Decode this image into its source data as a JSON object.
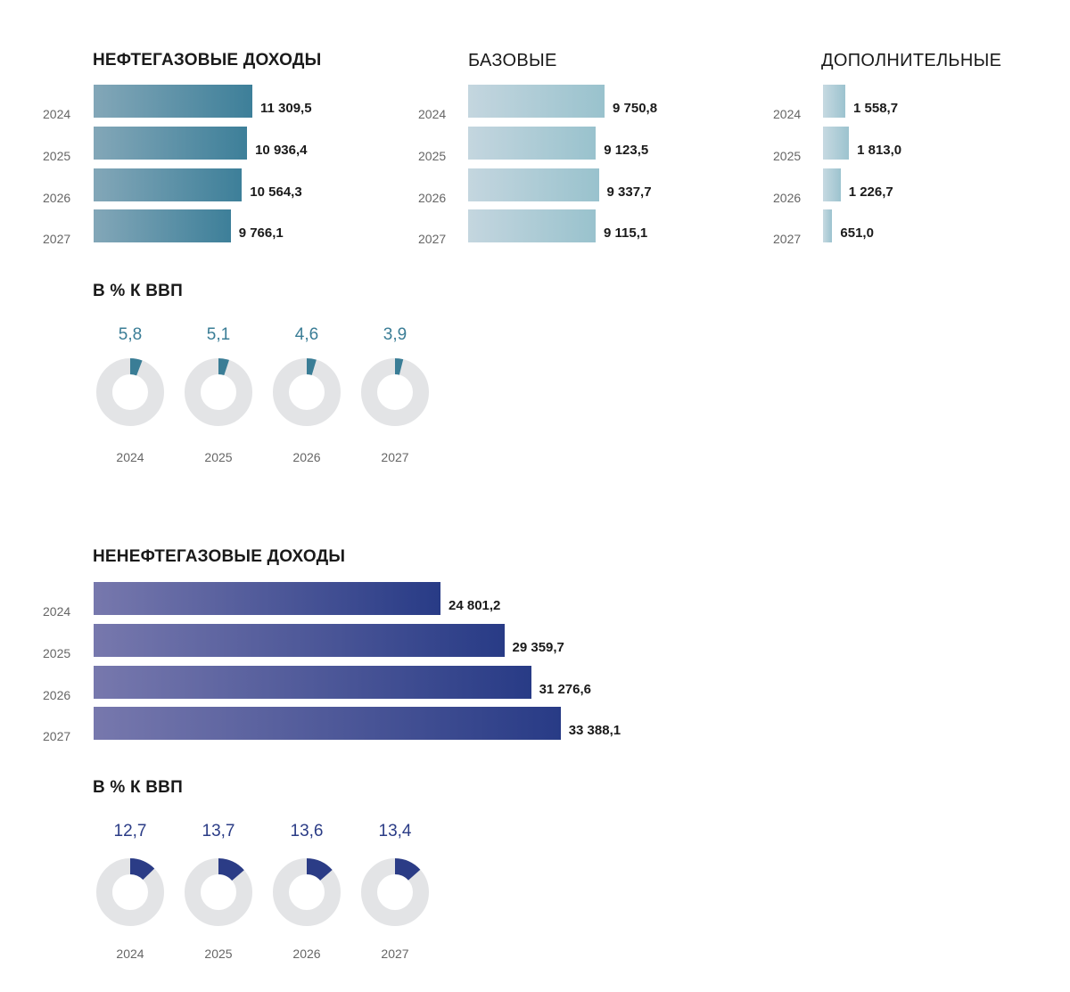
{
  "colors": {
    "oil_accent": "#3a7d96",
    "nonoil_accent": "#2b3c86",
    "ring_bg": "#e3e4e6"
  },
  "chart_data": [
    {
      "type": "bar",
      "orientation": "horizontal",
      "title": "НЕФТЕГАЗОВЫЕ ДОХОДЫ",
      "categories": [
        "2024",
        "2025",
        "2026",
        "2027"
      ],
      "values": [
        11309.5,
        10936.4,
        10564.3,
        9766.1
      ],
      "labels": [
        "11 309,5",
        "10 936,4",
        "10 564,3",
        "9 766,1"
      ]
    },
    {
      "type": "bar",
      "orientation": "horizontal",
      "title": "БАЗОВЫЕ",
      "categories": [
        "2024",
        "2025",
        "2026",
        "2027"
      ],
      "values": [
        9750.8,
        9123.5,
        9337.7,
        9115.1
      ],
      "labels": [
        "9 750,8",
        "9 123,5",
        "9 337,7",
        "9 115,1"
      ]
    },
    {
      "type": "bar",
      "orientation": "horizontal",
      "title": "ДОПОЛНИТЕЛЬНЫЕ",
      "categories": [
        "2024",
        "2025",
        "2026",
        "2027"
      ],
      "values": [
        1558.7,
        1813.0,
        1226.7,
        651.0
      ],
      "labels": [
        "1 558,7",
        "1 813,0",
        "1 226,7",
        "651,0"
      ]
    },
    {
      "type": "pie",
      "title": "В % К ВВП",
      "categories": [
        "2024",
        "2025",
        "2026",
        "2027"
      ],
      "values": [
        5.8,
        5.1,
        4.6,
        3.9
      ],
      "labels": [
        "5,8",
        "5,1",
        "4,6",
        "3,9"
      ]
    },
    {
      "type": "bar",
      "orientation": "horizontal",
      "title": "НЕНЕФТЕГАЗОВЫЕ ДОХОДЫ",
      "categories": [
        "2024",
        "2025",
        "2026",
        "2027"
      ],
      "values": [
        24801.2,
        29359.7,
        31276.6,
        33388.1
      ],
      "labels": [
        "24 801,2",
        "29 359,7",
        "31 276,6",
        "33 388,1"
      ]
    },
    {
      "type": "pie",
      "title": "В % К ВВП",
      "categories": [
        "2024",
        "2025",
        "2026",
        "2027"
      ],
      "values": [
        12.7,
        13.7,
        13.6,
        13.4
      ],
      "labels": [
        "12,7",
        "13,7",
        "13,6",
        "13,4"
      ]
    }
  ]
}
